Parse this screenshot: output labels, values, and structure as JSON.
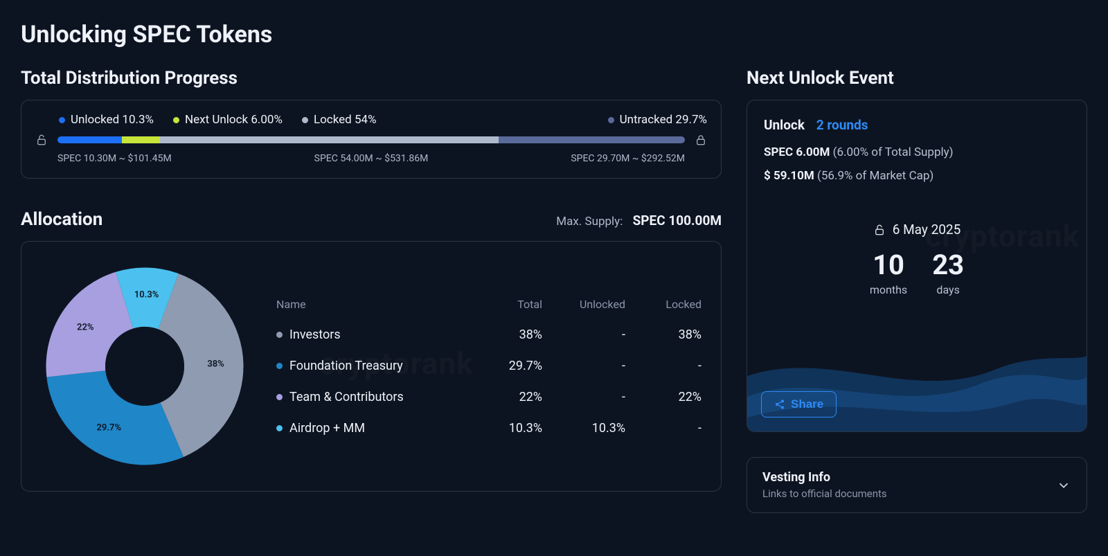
{
  "colors": {
    "bg": "#0d1421",
    "card_border": "#2a3547",
    "text": "#eef2f8",
    "muted": "#aeb9cc",
    "muted2": "#8a96ab",
    "accent_blue": "#2f8af5"
  },
  "page_title": "Unlocking SPEC Tokens",
  "distribution": {
    "title": "Total Distribution Progress",
    "legend": [
      {
        "label": "Unlocked 10.3%",
        "color": "#1d6ff5",
        "pct": 10.3
      },
      {
        "label": "Next Unlock 6.00%",
        "color": "#c7e53a",
        "pct": 6.0
      },
      {
        "label": "Locked 54%",
        "color": "#aeb9cc",
        "pct": 54.0
      },
      {
        "label": "Untracked 29.7%",
        "color": "#5a6a9a",
        "pct": 29.7
      }
    ],
    "bar_labels": {
      "left": "SPEC 10.30M ~ $101.45M",
      "mid": "SPEC 54.00M ~ $531.86M",
      "right": "SPEC 29.70M ~ $292.52M"
    }
  },
  "allocation": {
    "title": "Allocation",
    "max_supply_label": "Max. Supply:",
    "max_supply_value": "SPEC 100.00M",
    "donut": {
      "inner_ratio": 0.4,
      "slices": [
        {
          "name": "Investors",
          "pct": 38.0,
          "color": "#8f9bb0",
          "label": "38%"
        },
        {
          "name": "Foundation Treasury",
          "pct": 29.7,
          "color": "#1f86c7",
          "label": "29.7%"
        },
        {
          "name": "Team & Contributors",
          "pct": 22.0,
          "color": "#a79fe0",
          "label": "22%"
        },
        {
          "name": "Airdrop + MM",
          "pct": 10.3,
          "color": "#4cc0ee",
          "label": "10.3%"
        }
      ],
      "start_angle_deg": -70,
      "label_radius_ratio": 0.72,
      "label_colors": [
        "#0d1421",
        "#0d1421",
        "#0d1421",
        "#0d1421"
      ]
    },
    "table": {
      "headers": {
        "name": "Name",
        "total": "Total",
        "unlocked": "Unlocked",
        "locked": "Locked"
      },
      "rows": [
        {
          "color": "#8f9bb0",
          "name": "Investors",
          "total": "38%",
          "unlocked": "-",
          "locked": "38%"
        },
        {
          "color": "#1f86c7",
          "name": "Foundation Treasury",
          "total": "29.7%",
          "unlocked": "-",
          "locked": "-"
        },
        {
          "color": "#a79fe0",
          "name": "Team & Contributors",
          "total": "22%",
          "unlocked": "-",
          "locked": "22%"
        },
        {
          "color": "#4cc0ee",
          "name": "Airdrop + MM",
          "total": "10.3%",
          "unlocked": "10.3%",
          "locked": "-"
        }
      ]
    },
    "watermark_text": "cryptorank"
  },
  "next_unlock": {
    "title": "Next Unlock Event",
    "unlock_label": "Unlock",
    "rounds_text": "2 rounds",
    "line2_bold": "SPEC 6.00M",
    "line2_rest": "(6.00% of Total Supply)",
    "line3_bold": "$ 59.10M",
    "line3_rest": "(56.9% of Market Cap)",
    "date_text": "6 May 2025",
    "countdown": [
      {
        "num": "10",
        "label": "months"
      },
      {
        "num": "23",
        "label": "days"
      }
    ],
    "share_label": "Share",
    "watermark_text": "cryptorank",
    "wave_colors": [
      "#11365f",
      "#174a7f",
      "#0f2a4a"
    ]
  },
  "vesting": {
    "title": "Vesting Info",
    "subtitle": "Links to official documents"
  }
}
